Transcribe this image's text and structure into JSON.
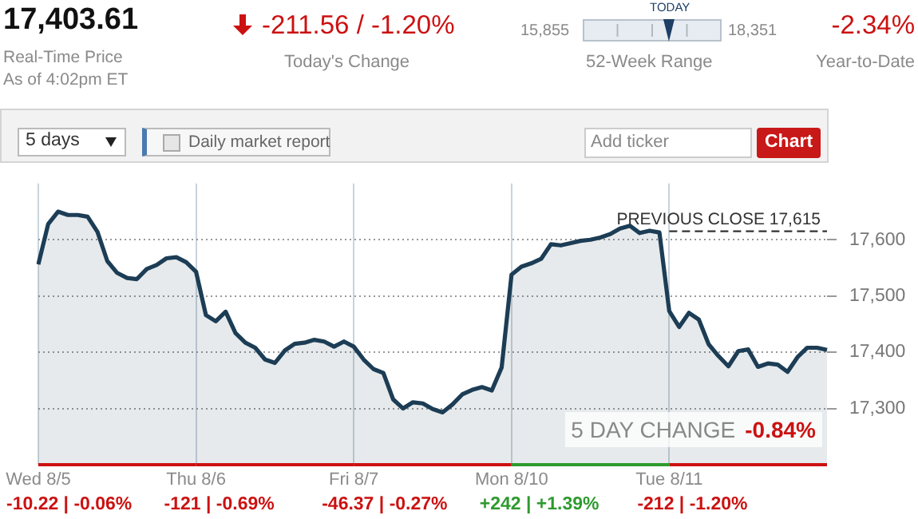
{
  "chart_data": {
    "type": "area",
    "title": "17,403.61",
    "subtitle": "Real-Time Price\nAs of 4:02pm ET",
    "annotations": [
      "-211.56 / -1.20%",
      "Today's Change",
      "TODAY",
      "15,855",
      "18,351",
      "52-Week Range",
      "-2.34%",
      "Year-to-Date",
      "5 days",
      "Daily market report",
      "Add ticker",
      "Chart",
      "5 DAY CHANGE",
      "-0.84%",
      "-10.22 | -0.06%",
      "-121 | -0.69%",
      "-46.37 | -0.27%",
      "+242 | +1.39%",
      "-212 | -1.20%"
    ],
    "categories": [
      "Wed 8/5",
      null,
      null,
      null,
      null,
      null,
      null,
      null,
      null,
      null,
      null,
      null,
      null,
      null,
      null,
      null,
      "Thu 8/6",
      null,
      null,
      null,
      null,
      null,
      null,
      null,
      null,
      null,
      null,
      null,
      null,
      null,
      null,
      null,
      "Fri 8/7",
      null,
      null,
      null,
      null,
      null,
      null,
      null,
      null,
      null,
      null,
      null,
      null,
      null,
      null,
      null,
      "Mon 8/10",
      null,
      null,
      null,
      null,
      null,
      null,
      null,
      null,
      null,
      null,
      null,
      null,
      null,
      null,
      null,
      "Tue 8/11",
      null,
      null,
      null,
      null,
      null,
      null,
      null,
      null,
      null,
      null,
      null,
      null,
      null,
      null,
      null,
      null
    ],
    "series": [
      {
        "color": "#1c3d55",
        "values": [
          17556,
          17628,
          17650,
          17644,
          17644,
          17641,
          17614,
          17562,
          17541,
          17532,
          17530,
          17548,
          17555,
          17567,
          17569,
          17560,
          17543,
          17466,
          17455,
          17472,
          17434,
          17417,
          17408,
          17387,
          17381,
          17403,
          17415,
          17417,
          17422,
          17419,
          17410,
          17419,
          17410,
          17387,
          17370,
          17363,
          17316,
          17300,
          17311,
          17309,
          17299,
          17293,
          17307,
          17325,
          17333,
          17338,
          17332,
          17373,
          17538,
          17552,
          17558,
          17566,
          17592,
          17590,
          17594,
          17598,
          17600,
          17604,
          17610,
          17620,
          17625,
          17612,
          17616,
          17613,
          17473,
          17445,
          17470,
          17458,
          17414,
          17393,
          17375,
          17402,
          17405,
          17374,
          17380,
          17378,
          17365,
          17391,
          17408,
          17408,
          17404
        ]
      }
    ],
    "ylim": [
      17200,
      17700
    ],
    "yticks": [
      {
        "value": 17300,
        "label": "17,300"
      },
      {
        "value": 17400,
        "label": "17,400"
      },
      {
        "value": 17500,
        "label": "17,500"
      },
      {
        "value": 17600,
        "label": "17,600"
      }
    ],
    "ref_lines": [
      {
        "axis": "y",
        "value": 17615,
        "label": "PREVIOUS CLOSE 17,615",
        "color": "#333333",
        "line_style": "dashed"
      }
    ],
    "grid": true,
    "legend": false,
    "marker": "none",
    "line_style": "solid"
  }
}
